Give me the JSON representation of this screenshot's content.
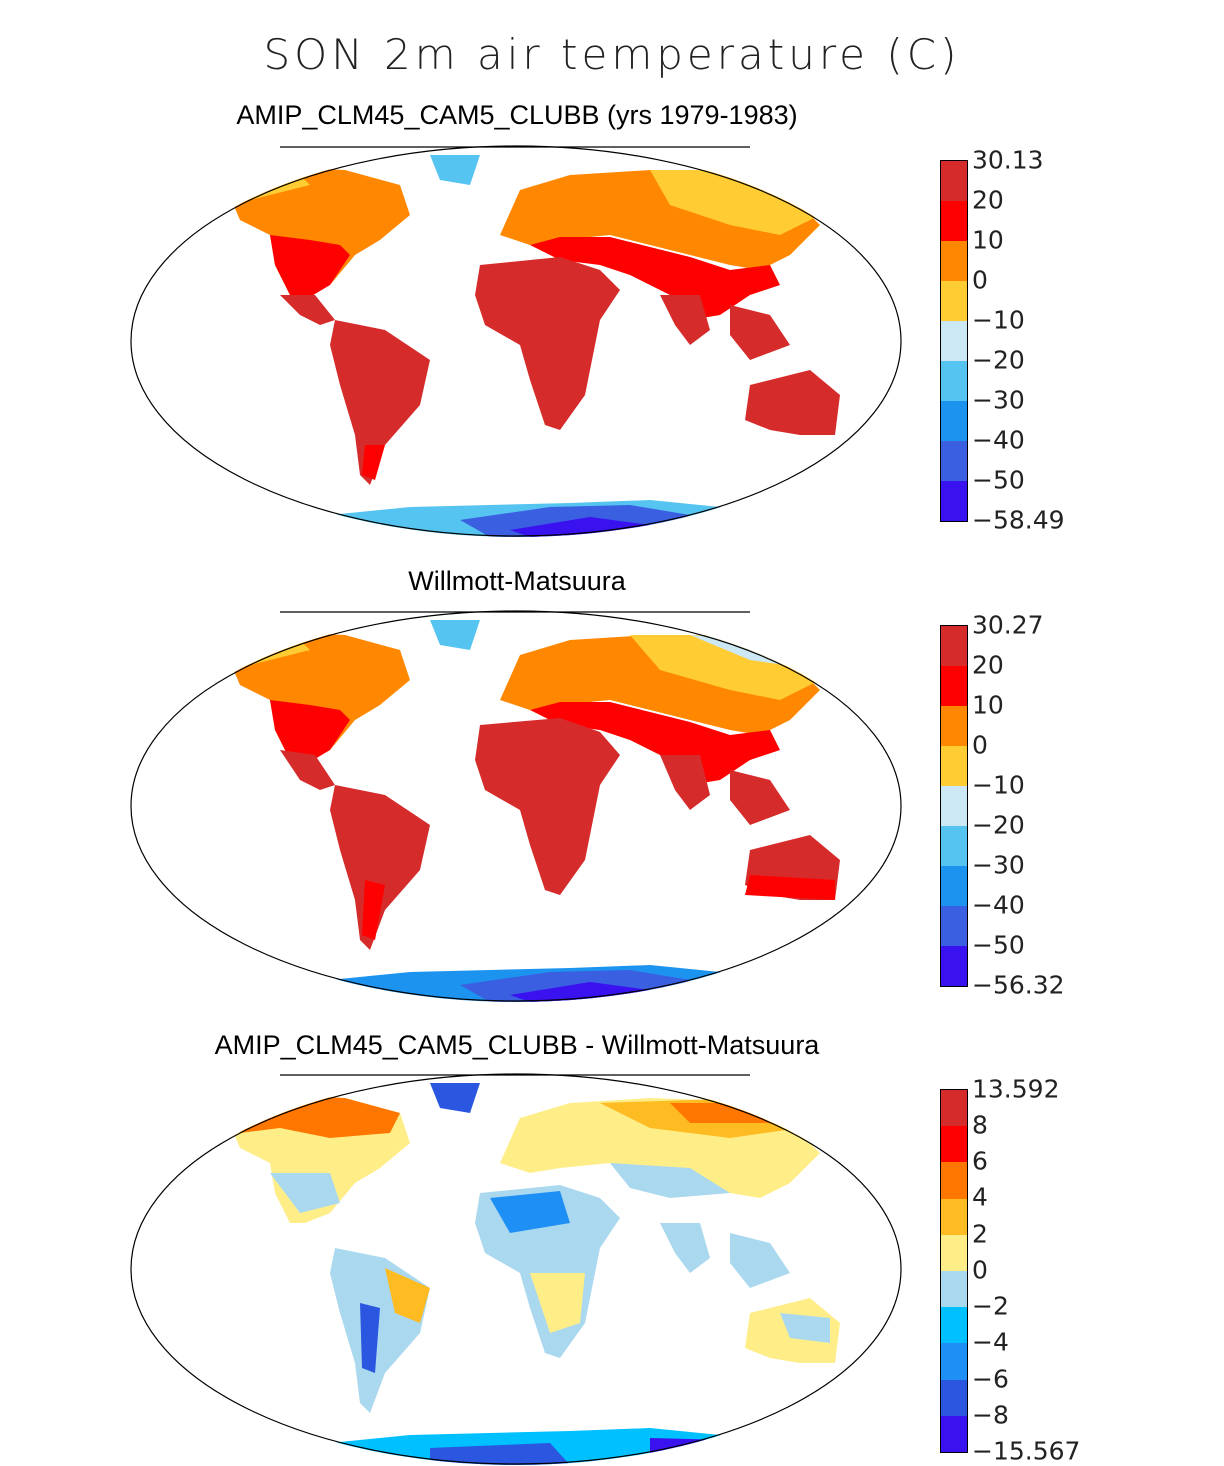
{
  "title": "SON 2m air temperature (C)",
  "panels": [
    {
      "id": "model",
      "title": "AMIP_CLM45_CAM5_CLUBB (yrs 1979-1983)",
      "colorbar": {
        "labels": [
          "30.13",
          "20",
          "10",
          "0",
          "−10",
          "−20",
          "−30",
          "−40",
          "−50",
          "−58.49"
        ],
        "colors": [
          "#d62b2b",
          "#ff0000",
          "#ff8800",
          "#ffcc33",
          "#cce8f4",
          "#55c4f0",
          "#1d93f0",
          "#3a5fe0",
          "#3a12f0"
        ]
      }
    },
    {
      "id": "obs",
      "title": "Willmott-Matsuura",
      "colorbar": {
        "labels": [
          "30.27",
          "20",
          "10",
          "0",
          "−10",
          "−20",
          "−30",
          "−40",
          "−50",
          "−56.32"
        ],
        "colors": [
          "#d62b2b",
          "#ff0000",
          "#ff8800",
          "#ffcc33",
          "#cce8f4",
          "#55c4f0",
          "#1d93f0",
          "#3a5fe0",
          "#3a12f0"
        ]
      }
    },
    {
      "id": "diff",
      "title": "AMIP_CLM45_CAM5_CLUBB - Willmott-Matsuura",
      "colorbar": {
        "labels": [
          "13.592",
          "8",
          "6",
          "4",
          "2",
          "0",
          "−2",
          "−4",
          "−6",
          "−8",
          "−15.567"
        ],
        "colors": [
          "#d62b2b",
          "#ff0000",
          "#ff7700",
          "#ffbb22",
          "#ffee88",
          "#aad8ee",
          "#00c0ff",
          "#1e8ff5",
          "#2a56e0",
          "#3a12f0"
        ]
      }
    }
  ]
}
